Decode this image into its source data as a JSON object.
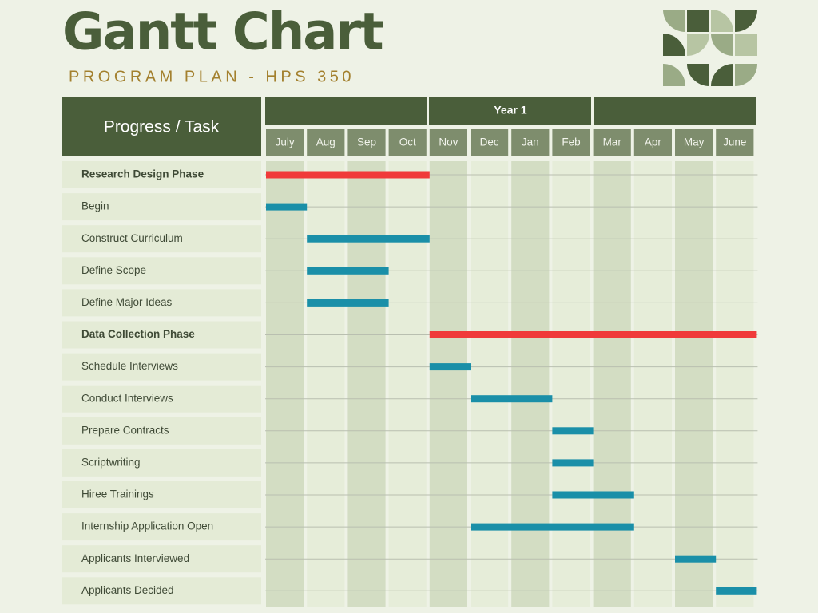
{
  "chart_data": {
    "type": "gantt",
    "title": "Gantt Chart",
    "subtitle": "PROGRAM PLAN - HPS 350",
    "task_header": "Progress / Task",
    "period_label": "Year 1",
    "months": [
      "July",
      "Aug",
      "Sep",
      "Oct",
      "Nov",
      "Dec",
      "Jan",
      "Feb",
      "Mar",
      "Apr",
      "May",
      "June"
    ],
    "xlim": [
      0,
      12
    ],
    "tasks": [
      {
        "name": "Research Design Phase",
        "start": 0,
        "end": 4,
        "color": "#f03a3a",
        "phase": true
      },
      {
        "name": "Begin",
        "start": 0,
        "end": 1,
        "color": "#1a8fa8"
      },
      {
        "name": "Construct Curriculum",
        "start": 1,
        "end": 4,
        "color": "#1a8fa8"
      },
      {
        "name": "Define Scope",
        "start": 1,
        "end": 3,
        "color": "#1a8fa8"
      },
      {
        "name": "Define Major Ideas",
        "start": 1,
        "end": 3,
        "color": "#1a8fa8"
      },
      {
        "name": "Data Collection Phase",
        "start": 4,
        "end": 12,
        "color": "#f03a3a",
        "phase": true
      },
      {
        "name": "Schedule Interviews",
        "start": 4,
        "end": 5,
        "color": "#1a8fa8"
      },
      {
        "name": "Conduct Interviews",
        "start": 5,
        "end": 7,
        "color": "#1a8fa8"
      },
      {
        "name": "Prepare Contracts",
        "start": 7,
        "end": 8,
        "color": "#1a8fa8"
      },
      {
        "name": "Scriptwriting",
        "start": 7,
        "end": 8,
        "color": "#1a8fa8"
      },
      {
        "name": "Hiree Trainings",
        "start": 7,
        "end": 9,
        "color": "#1a8fa8"
      },
      {
        "name": "Internship Application Open",
        "start": 5,
        "end": 9,
        "color": "#1a8fa8"
      },
      {
        "name": "Applicants Interviewed",
        "start": 10,
        "end": 11,
        "color": "#1a8fa8"
      },
      {
        "name": "Applicants Decided",
        "start": 11,
        "end": 12,
        "color": "#1a8fa8"
      }
    ]
  }
}
